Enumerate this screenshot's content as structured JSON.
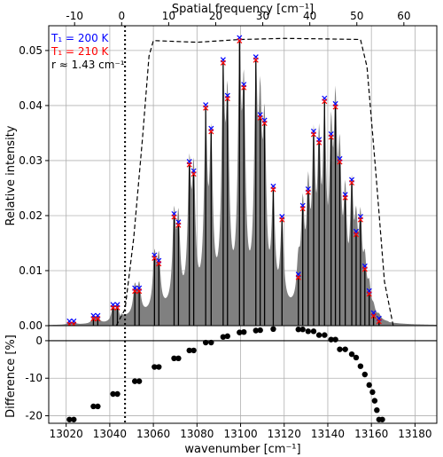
{
  "chart_data": {
    "type": "line",
    "main": {
      "top_axis": {
        "label": "Spatial frequency [cm⁻¹]",
        "range": [
          -15.5,
          67
        ],
        "ticks": [
          -10,
          0,
          10,
          20,
          30,
          40,
          50,
          60
        ]
      },
      "x_range": [
        13012,
        13190
      ],
      "x_ticks": [
        13020,
        13040,
        13060,
        13080,
        13100,
        13120,
        13140,
        13160,
        13180
      ],
      "y_label": "Relative intensity",
      "y_range": [
        0,
        0.0545
      ],
      "y_ticks": [
        0.0,
        0.01,
        0.02,
        0.03,
        0.04,
        0.05
      ],
      "y_tick_labels": [
        "0.00",
        "0.01",
        "0.02",
        "0.03",
        "0.04",
        "0.05"
      ],
      "grid": true,
      "vertical_marker_x": 13047,
      "legend": {
        "placement": "top-left",
        "entries": [
          {
            "text": "T₁ = 200 K",
            "color": "#0000ff"
          },
          {
            "text": "T₁ = 210 K",
            "color": "#ff0000"
          },
          {
            "text": "r ≈ 1.43 cm⁻¹",
            "color": "#000000"
          }
        ]
      },
      "lines": [
        {
          "x": 13021.5,
          "y": 0.0005
        },
        {
          "x": 13023.5,
          "y": 0.0005
        },
        {
          "x": 13032.5,
          "y": 0.0015
        },
        {
          "x": 13034.5,
          "y": 0.0015
        },
        {
          "x": 13041.5,
          "y": 0.0035
        },
        {
          "x": 13043.5,
          "y": 0.0035
        },
        {
          "x": 13051.5,
          "y": 0.0065
        },
        {
          "x": 13053.5,
          "y": 0.0065
        },
        {
          "x": 13060.5,
          "y": 0.0125
        },
        {
          "x": 13062.5,
          "y": 0.0115
        },
        {
          "x": 13069.5,
          "y": 0.02
        },
        {
          "x": 13071.5,
          "y": 0.0185
        },
        {
          "x": 13076.5,
          "y": 0.0295
        },
        {
          "x": 13078.5,
          "y": 0.0278
        },
        {
          "x": 13084.0,
          "y": 0.0398
        },
        {
          "x": 13086.5,
          "y": 0.0355
        },
        {
          "x": 13092.0,
          "y": 0.048
        },
        {
          "x": 13094.0,
          "y": 0.0415
        },
        {
          "x": 13099.5,
          "y": 0.052
        },
        {
          "x": 13101.5,
          "y": 0.0435
        },
        {
          "x": 13107.0,
          "y": 0.0485
        },
        {
          "x": 13109.0,
          "y": 0.038
        },
        {
          "x": 13111.0,
          "y": 0.037
        },
        {
          "x": 13115.0,
          "y": 0.025
        },
        {
          "x": 13119.0,
          "y": 0.0195
        },
        {
          "x": 13126.5,
          "y": 0.009
        },
        {
          "x": 13128.5,
          "y": 0.0215
        },
        {
          "x": 13131.0,
          "y": 0.0245
        },
        {
          "x": 13133.5,
          "y": 0.035
        },
        {
          "x": 13136.0,
          "y": 0.0335
        },
        {
          "x": 13138.5,
          "y": 0.041
        },
        {
          "x": 13141.5,
          "y": 0.0345
        },
        {
          "x": 13143.5,
          "y": 0.04
        },
        {
          "x": 13145.5,
          "y": 0.03
        },
        {
          "x": 13148.0,
          "y": 0.0235
        },
        {
          "x": 13151.0,
          "y": 0.0262
        },
        {
          "x": 13153.0,
          "y": 0.0168
        },
        {
          "x": 13155.0,
          "y": 0.0195
        },
        {
          "x": 13157.0,
          "y": 0.0105
        },
        {
          "x": 13159.0,
          "y": 0.006
        },
        {
          "x": 13161.0,
          "y": 0.002
        },
        {
          "x": 13163.5,
          "y": 0.001
        }
      ],
      "dashed_envelope": [
        [
          13043,
          0.0
        ],
        [
          13047,
          0.003
        ],
        [
          13051,
          0.016
        ],
        [
          13055,
          0.034
        ],
        [
          13058,
          0.049
        ],
        [
          13060,
          0.0518
        ],
        [
          13080,
          0.0515
        ],
        [
          13100,
          0.052
        ],
        [
          13120,
          0.0522
        ],
        [
          13140,
          0.0521
        ],
        [
          13155,
          0.052
        ],
        [
          13158,
          0.047
        ],
        [
          13162,
          0.028
        ],
        [
          13166,
          0.008
        ],
        [
          13170,
          0.0
        ]
      ]
    },
    "bottom": {
      "y_label": "Difference [%]",
      "x_label": "wavenumber [cm⁻¹]",
      "y_range": [
        -22,
        4
      ],
      "y_ticks": [
        0,
        -10,
        -20
      ],
      "points": [
        [
          13021.5,
          -21.0
        ],
        [
          13023.5,
          -21.0
        ],
        [
          13032.5,
          -17.5
        ],
        [
          13034.5,
          -17.5
        ],
        [
          13041.5,
          -14.2
        ],
        [
          13043.5,
          -14.2
        ],
        [
          13051.5,
          -10.8
        ],
        [
          13053.5,
          -10.8
        ],
        [
          13060.5,
          -7.0
        ],
        [
          13062.5,
          -7.0
        ],
        [
          13069.5,
          -4.7
        ],
        [
          13071.5,
          -4.7
        ],
        [
          13076.5,
          -2.6
        ],
        [
          13078.5,
          -2.6
        ],
        [
          13084.0,
          -0.5
        ],
        [
          13086.5,
          -0.5
        ],
        [
          13092.0,
          1.0
        ],
        [
          13094.0,
          1.2
        ],
        [
          13099.5,
          2.2
        ],
        [
          13101.5,
          2.3
        ],
        [
          13107.0,
          2.7
        ],
        [
          13109.0,
          2.8
        ],
        [
          13115.0,
          3.1
        ],
        [
          13126.5,
          3.0
        ],
        [
          13128.5,
          3.0
        ],
        [
          13131.0,
          2.5
        ],
        [
          13133.5,
          2.5
        ],
        [
          13136.0,
          1.5
        ],
        [
          13138.5,
          1.5
        ],
        [
          13141.5,
          0.3
        ],
        [
          13143.5,
          0.3
        ],
        [
          13145.5,
          -2.3
        ],
        [
          13148.0,
          -2.3
        ],
        [
          13151.0,
          -3.6
        ],
        [
          13153.0,
          -4.5
        ],
        [
          13155.0,
          -6.8
        ],
        [
          13157.0,
          -9.0
        ],
        [
          13159.0,
          -11.8
        ],
        [
          13160.5,
          -13.7
        ],
        [
          13161.5,
          -16.0
        ],
        [
          13162.5,
          -18.5
        ],
        [
          13163.5,
          -21.0
        ],
        [
          13165.0,
          -21.0
        ]
      ]
    },
    "colors": {
      "t200": "#0000ff",
      "t210": "#ff0000",
      "fill": "#808080",
      "line": "#000000"
    }
  }
}
